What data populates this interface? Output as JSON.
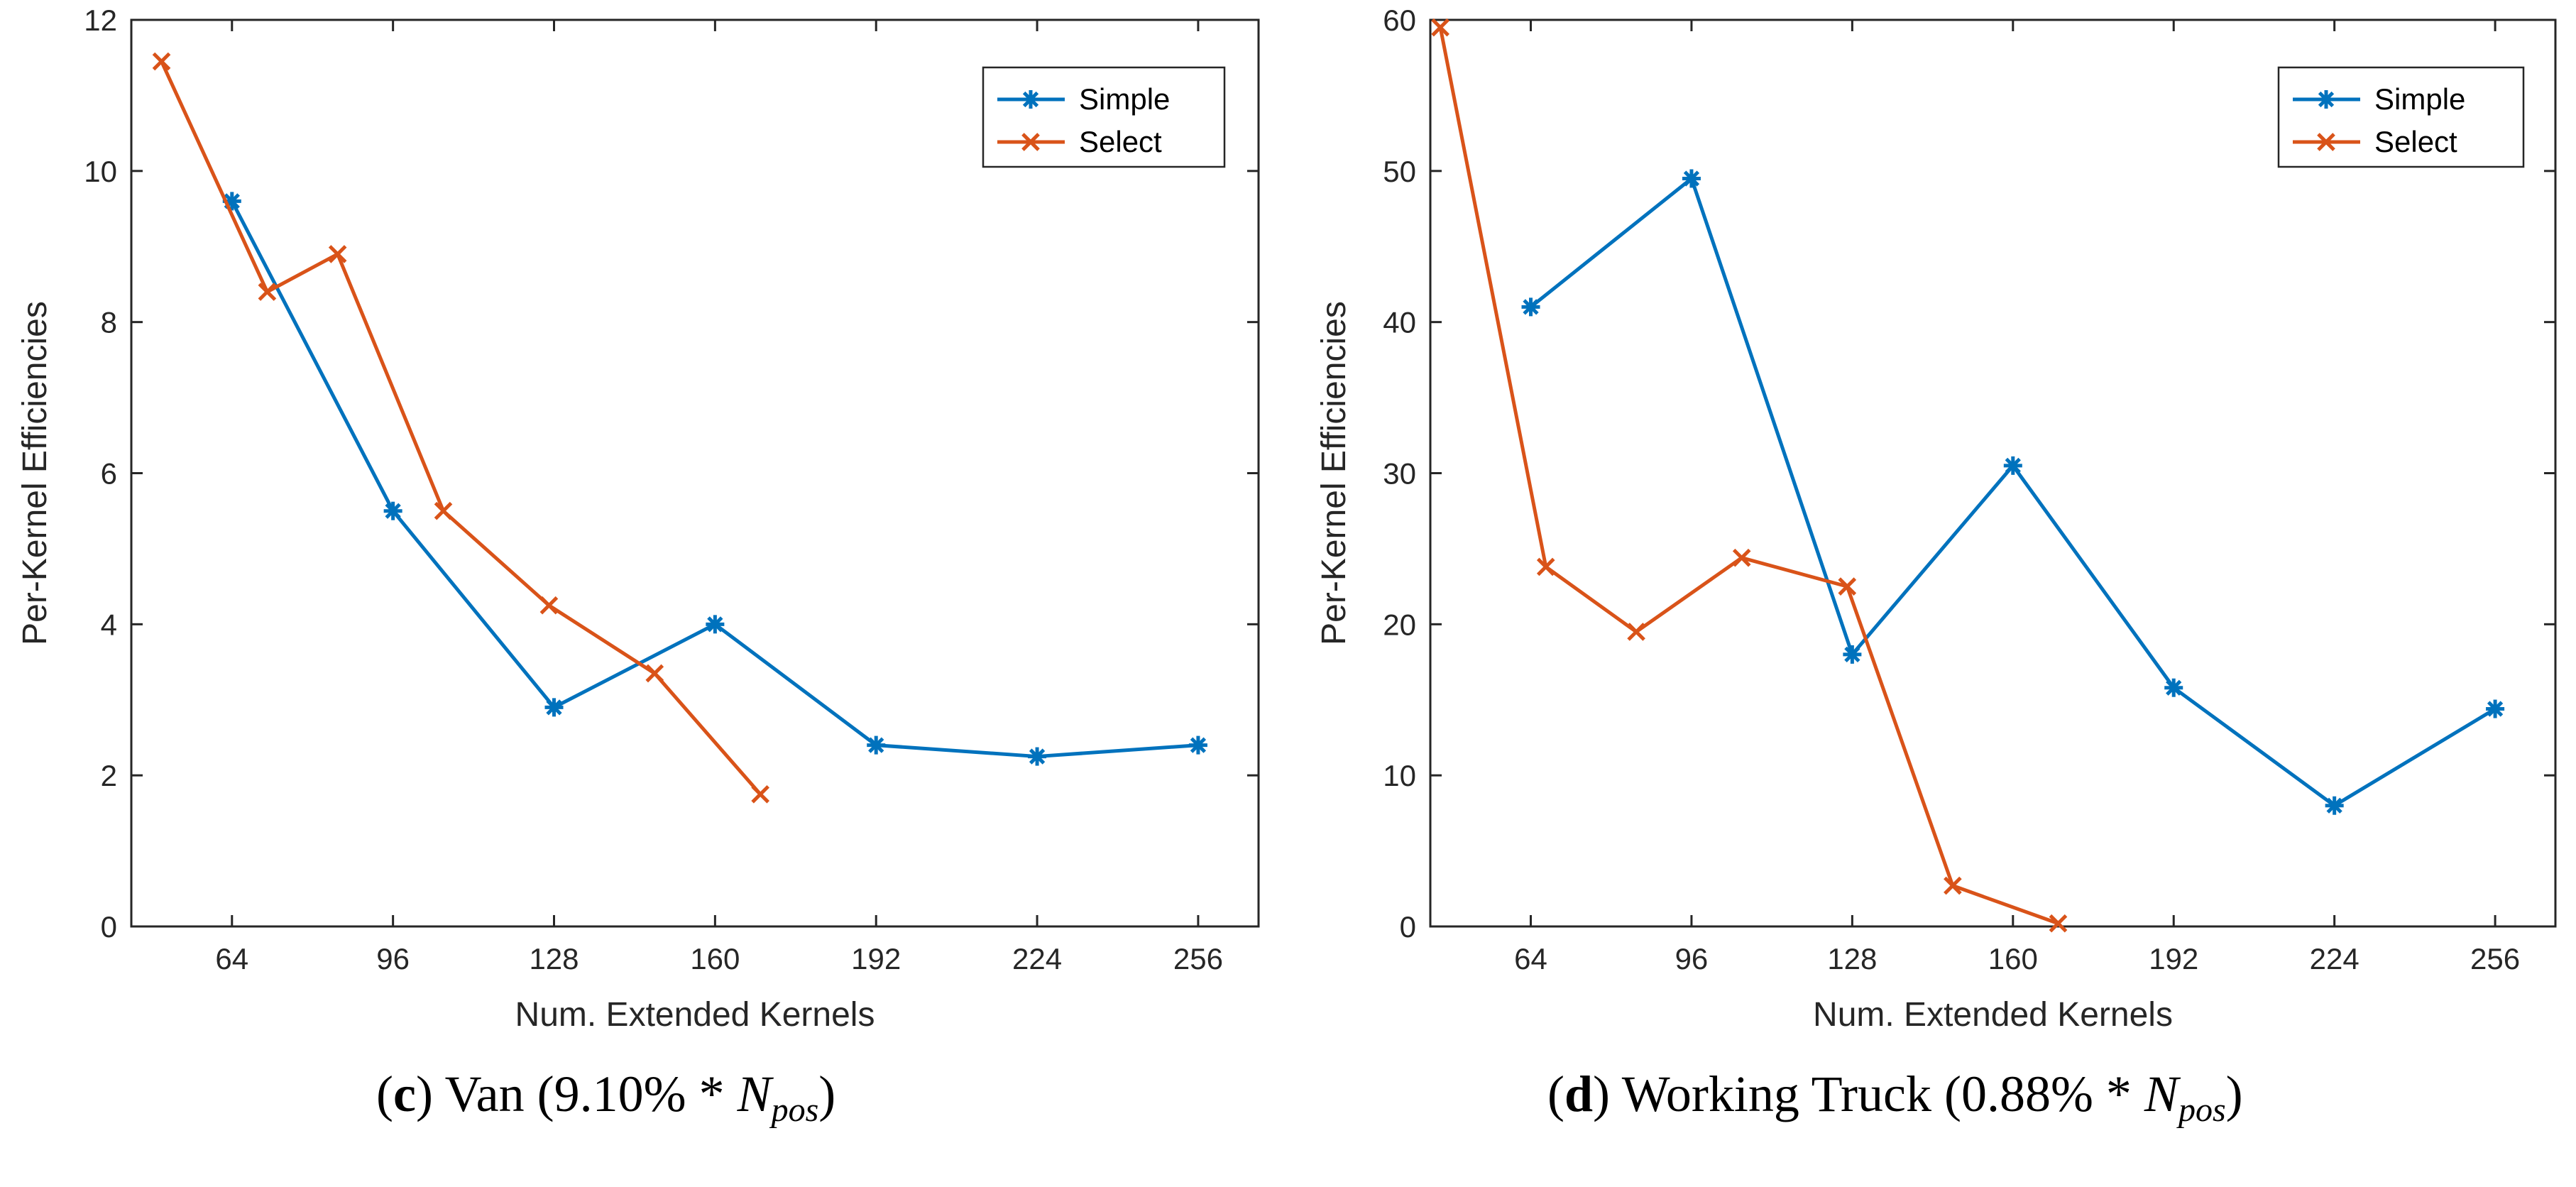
{
  "chart_data": [
    {
      "type": "line",
      "xlabel": "Num. Extended Kernels",
      "ylabel": "Per-Kernel Efficiencies",
      "xlim": [
        44,
        268
      ],
      "ylim": [
        0,
        12
      ],
      "xticks": [
        64,
        96,
        128,
        160,
        192,
        224,
        256
      ],
      "yticks": [
        0,
        2,
        4,
        6,
        8,
        10,
        12
      ],
      "legend_position": "top-right",
      "series": [
        {
          "name": "Simple",
          "marker": "asterisk",
          "color": "#0072BD",
          "x": [
            64,
            96,
            128,
            160,
            192,
            224,
            256
          ],
          "y": [
            9.6,
            5.5,
            2.9,
            4.0,
            2.4,
            2.25,
            2.4
          ]
        },
        {
          "name": "Select",
          "marker": "x",
          "color": "#D95319",
          "x": [
            50,
            71,
            85,
            106,
            127,
            148,
            169
          ],
          "y": [
            11.45,
            8.4,
            8.9,
            5.5,
            4.25,
            3.35,
            1.75
          ]
        }
      ],
      "caption": {
        "letter": "c",
        "text": " Van (9.10% * ",
        "var": "N",
        "sub": "pos",
        "end": ")"
      }
    },
    {
      "type": "line",
      "xlabel": "Num. Extended Kernels",
      "ylabel": "Per-Kernel Efficiencies",
      "xlim": [
        44,
        268
      ],
      "ylim": [
        0,
        60
      ],
      "xticks": [
        64,
        96,
        128,
        160,
        192,
        224,
        256
      ],
      "yticks": [
        0,
        10,
        20,
        30,
        40,
        50,
        60
      ],
      "legend_position": "top-right",
      "series": [
        {
          "name": "Simple",
          "marker": "asterisk",
          "color": "#0072BD",
          "x": [
            64,
            96,
            128,
            160,
            192,
            224,
            256
          ],
          "y": [
            41,
            49.5,
            18,
            30.5,
            15.8,
            8,
            14.4
          ]
        },
        {
          "name": "Select",
          "marker": "x",
          "color": "#D95319",
          "x": [
            46,
            67,
            85,
            106,
            127,
            148,
            169
          ],
          "y": [
            59.5,
            23.8,
            19.5,
            24.4,
            22.5,
            2.7,
            0.2
          ]
        }
      ],
      "caption": {
        "letter": "d",
        "text": " Working Truck (0.88% * ",
        "var": "N",
        "sub": "pos",
        "end": ")"
      }
    }
  ]
}
